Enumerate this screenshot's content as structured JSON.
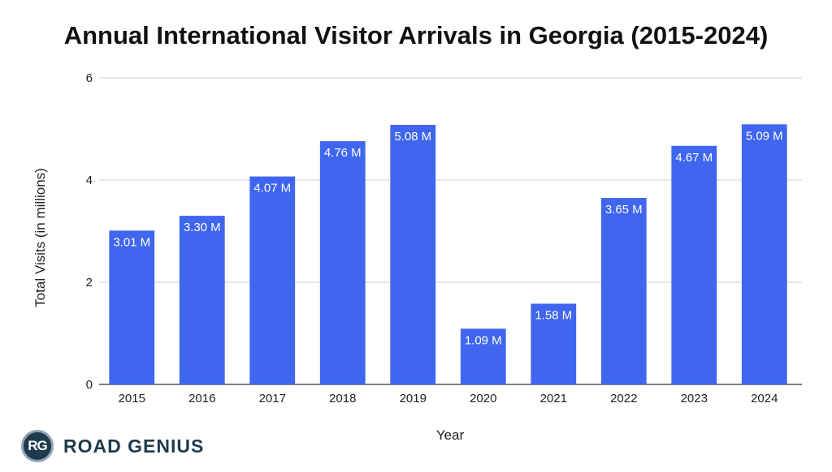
{
  "brand": {
    "badge": "RG",
    "name": "ROAD GENIUS"
  },
  "chart_data": {
    "type": "bar",
    "title": "Annual International Visitor Arrivals in Georgia (2015-2024)",
    "xlabel": "Year",
    "ylabel": "Total Visits (in millions)",
    "categories": [
      "2015",
      "2016",
      "2017",
      "2018",
      "2019",
      "2020",
      "2021",
      "2022",
      "2023",
      "2024"
    ],
    "values": [
      3.01,
      3.3,
      4.07,
      4.76,
      5.08,
      1.09,
      1.58,
      3.65,
      4.67,
      5.09
    ],
    "data_labels": [
      "3.01 M",
      "3.30 M",
      "4.07 M",
      "4.76 M",
      "5.08 M",
      "1.09 M",
      "1.58 M",
      "3.65 M",
      "4.67 M",
      "5.09 M"
    ],
    "ylim": [
      0,
      6
    ],
    "yticks": [
      0,
      2,
      4,
      6
    ],
    "grid": true,
    "legend": "none",
    "bar_color": "#4066f0",
    "grid_color": "#cfcfcf"
  }
}
